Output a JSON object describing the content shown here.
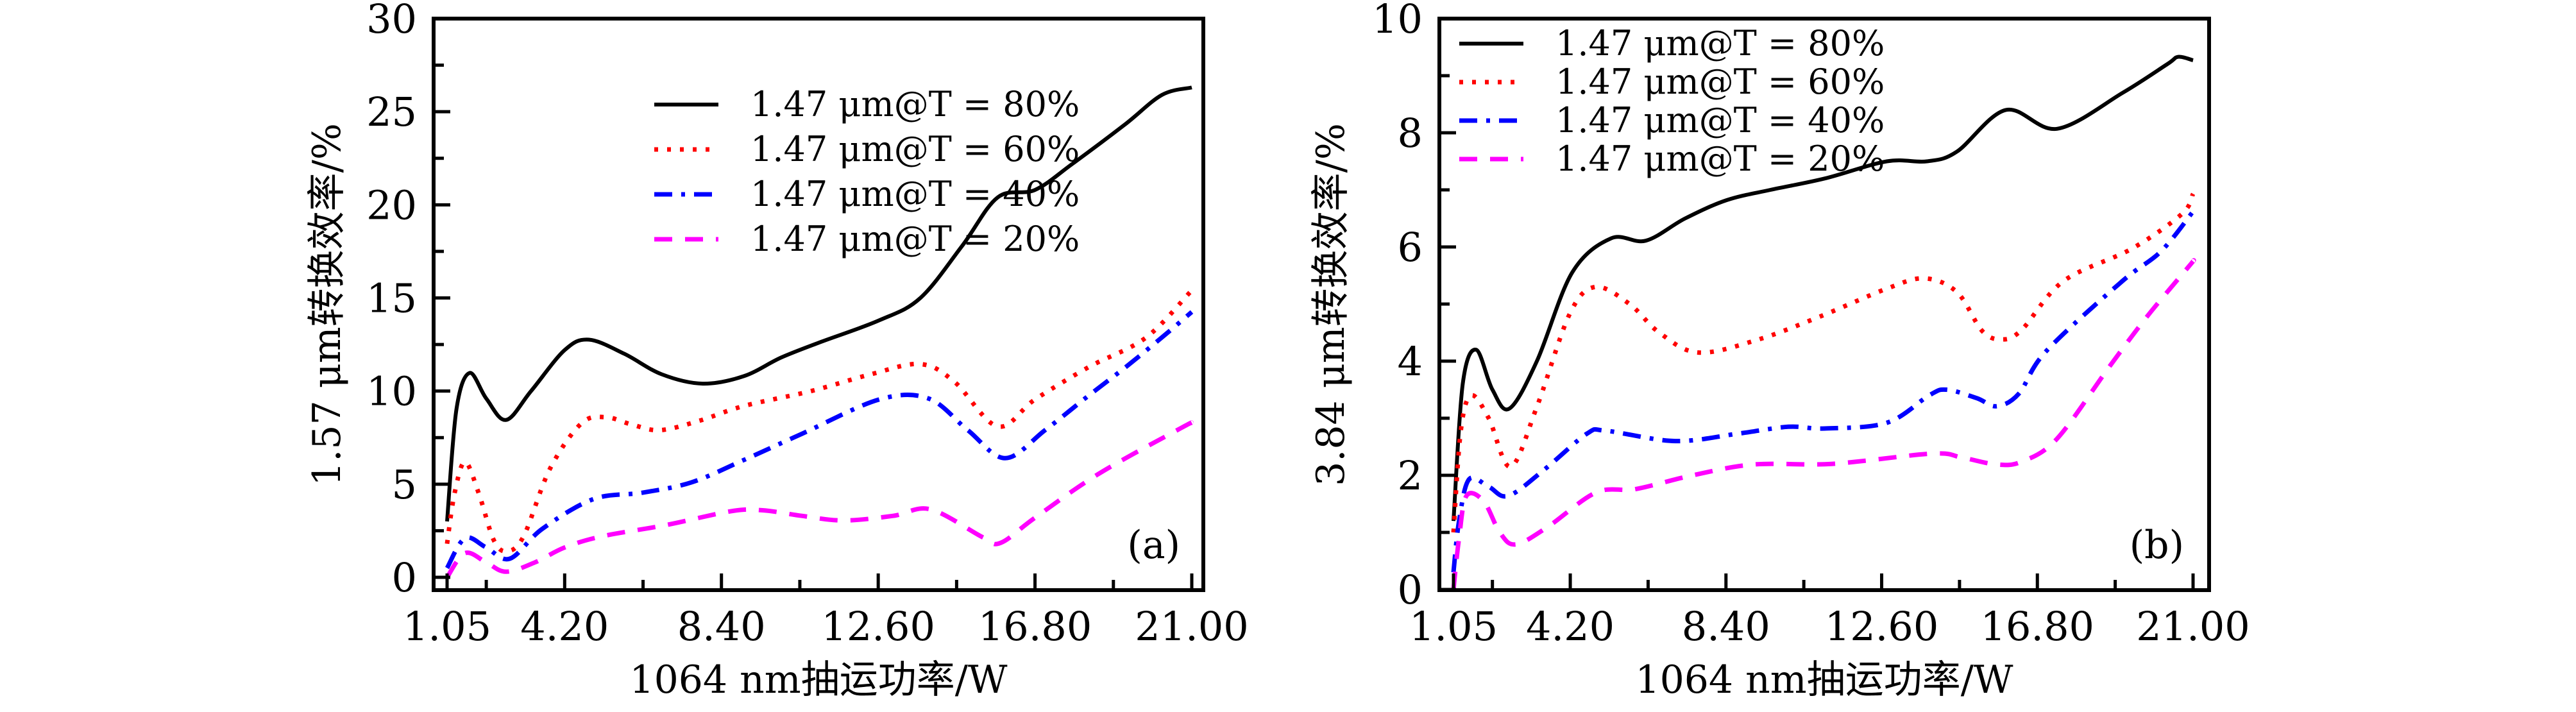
{
  "chart_data": [
    {
      "type": "line",
      "panel_label": "(a)",
      "xlabel": "1064 nm抽运功率/W",
      "ylabel": "1.57 μm转换效率/%",
      "xlim": [
        1.05,
        21.0
      ],
      "ylim": [
        0,
        30
      ],
      "xticks": [
        1.05,
        4.2,
        8.4,
        12.6,
        16.8,
        21.0
      ],
      "xtick_labels": [
        "1.05",
        "4.20",
        "8.40",
        "12.60",
        "16.80",
        "21.00"
      ],
      "xminor_ticks": [
        2.1,
        6.3,
        10.5,
        14.7,
        18.9
      ],
      "yticks": [
        0,
        5,
        10,
        15,
        20,
        25,
        30
      ],
      "ytick_labels": [
        "0",
        "5",
        "10",
        "15",
        "20",
        "25",
        "30"
      ],
      "yminor_ticks": [
        2.5,
        7.5,
        12.5,
        17.5,
        22.5,
        27.5
      ],
      "grid": false,
      "legend_position": "top-center",
      "series": [
        {
          "name": "1.47 μm@T = 80%",
          "color": "#000000",
          "style": "solid",
          "x": [
            1.05,
            1.3,
            1.65,
            2.1,
            2.63,
            3.3,
            4.2,
            4.85,
            5.8,
            6.8,
            7.9,
            9.0,
            10.0,
            11.08,
            12.63,
            13.73,
            14.85,
            15.8,
            16.8,
            17.8,
            19.2,
            20.2,
            21.0
          ],
          "y": [
            3.0,
            9.0,
            10.97,
            9.6,
            8.45,
            10.0,
            12.2,
            12.76,
            12.0,
            10.9,
            10.4,
            10.8,
            11.8,
            12.65,
            13.8,
            15.0,
            17.8,
            20.4,
            20.8,
            22.2,
            24.3,
            25.9,
            26.3
          ]
        },
        {
          "name": "1.47 μm@T = 60%",
          "color": "#ff0000",
          "style": "dotted",
          "x": [
            1.05,
            1.25,
            1.53,
            1.9,
            2.3,
            2.65,
            3.1,
            3.8,
            4.64,
            5.3,
            6.0,
            6.75,
            7.8,
            9.0,
            10.8,
            12.4,
            13.73,
            14.64,
            15.8,
            16.8,
            18.25,
            19.76,
            20.95
          ],
          "y": [
            1.8,
            4.5,
            6.2,
            4.5,
            2.0,
            1.4,
            2.2,
            5.8,
            8.25,
            8.6,
            8.2,
            7.9,
            8.4,
            9.2,
            10.0,
            10.9,
            11.45,
            10.5,
            8.1,
            9.55,
            11.3,
            12.85,
            15.3
          ]
        },
        {
          "name": "1.47 μm@T = 40%",
          "color": "#0000ff",
          "style": "dashdot",
          "x": [
            1.05,
            1.53,
            2.1,
            2.73,
            3.6,
            4.97,
            6.3,
            7.6,
            9.0,
            10.55,
            12.63,
            13.95,
            15.0,
            16.0,
            17.07,
            18.2,
            19.3,
            20.33,
            21.0
          ],
          "y": [
            0.5,
            2.1,
            1.6,
            1.0,
            2.6,
            4.2,
            4.55,
            5.1,
            6.3,
            7.7,
            9.55,
            9.6,
            7.9,
            6.4,
            7.9,
            9.7,
            11.4,
            13.1,
            14.25
          ]
        },
        {
          "name": "1.47 μm@T = 20%",
          "color": "#ff00ff",
          "style": "dashed",
          "x": [
            1.05,
            1.53,
            2.1,
            2.63,
            3.4,
            4.2,
            5.2,
            6.9,
            8.66,
            9.5,
            10.55,
            11.67,
            13.0,
            14.0,
            15.4,
            15.88,
            16.8,
            18.5,
            20.7,
            21.0
          ],
          "y": [
            0.0,
            1.3,
            0.8,
            0.3,
            0.8,
            1.6,
            2.2,
            2.8,
            3.55,
            3.6,
            3.3,
            3.05,
            3.3,
            3.65,
            2.15,
            1.85,
            3.2,
            5.55,
            8.0,
            8.3
          ]
        }
      ]
    },
    {
      "type": "line",
      "panel_label": "(b)",
      "xlabel": "1064 nm抽运功率/W",
      "ylabel": "3.84 μm转换效率/%",
      "xlim": [
        1.05,
        21.0
      ],
      "ylim": [
        0,
        10
      ],
      "xticks": [
        1.05,
        4.2,
        8.4,
        12.6,
        16.8,
        21.0
      ],
      "xtick_labels": [
        "1.05",
        "4.20",
        "8.40",
        "12.60",
        "16.80",
        "21.00"
      ],
      "xminor_ticks": [
        2.1,
        6.3,
        10.5,
        14.7,
        18.9
      ],
      "yticks": [
        0,
        2,
        4,
        6,
        8,
        10
      ],
      "ytick_labels": [
        "0",
        "2",
        "4",
        "6",
        "8",
        "10"
      ],
      "yminor_ticks": [
        1,
        3,
        5,
        7,
        9
      ],
      "grid": false,
      "legend_position": "top-left",
      "series": [
        {
          "name": "1.47 μm@T = 80%",
          "color": "#000000",
          "style": "solid",
          "x": [
            1.05,
            1.3,
            1.66,
            2.1,
            2.56,
            3.3,
            4.25,
            5.3,
            6.24,
            7.3,
            8.42,
            9.6,
            11.07,
            12.74,
            13.82,
            14.63,
            15.95,
            17.33,
            19.1,
            20.3,
            20.6,
            21.0
          ],
          "y": [
            1.2,
            3.6,
            4.2,
            3.5,
            3.17,
            4.0,
            5.55,
            6.15,
            6.11,
            6.5,
            6.82,
            7.0,
            7.2,
            7.5,
            7.5,
            7.67,
            8.4,
            8.07,
            8.7,
            9.2,
            9.33,
            9.27
          ]
        },
        {
          "name": "1.47 μm@T = 60%",
          "color": "#ff0000",
          "style": "dotted",
          "x": [
            1.05,
            1.25,
            1.53,
            2.0,
            2.59,
            3.3,
            4.18,
            4.87,
            5.8,
            6.6,
            7.66,
            9.28,
            10.93,
            12.74,
            13.75,
            14.63,
            15.31,
            15.84,
            16.38,
            17.5,
            19.35,
            20.7,
            21.0
          ],
          "y": [
            1.0,
            2.8,
            3.4,
            3.0,
            2.15,
            3.2,
            4.82,
            5.3,
            5.0,
            4.5,
            4.15,
            4.38,
            4.78,
            5.27,
            5.45,
            5.21,
            4.53,
            4.38,
            4.55,
            5.4,
            5.97,
            6.58,
            6.93
          ]
        },
        {
          "name": "1.47 μm@T = 40%",
          "color": "#0000ff",
          "style": "dashdot",
          "x": [
            1.05,
            1.2,
            1.47,
            2.0,
            2.53,
            3.5,
            4.65,
            5.17,
            7.03,
            8.73,
            10.08,
            11.07,
            12.74,
            13.88,
            14.35,
            15.17,
            15.7,
            16.3,
            17.03,
            19.07,
            20.13,
            21.0
          ],
          "y": [
            0.3,
            1.2,
            1.93,
            1.8,
            1.64,
            2.1,
            2.73,
            2.78,
            2.6,
            2.73,
            2.85,
            2.82,
            2.92,
            3.4,
            3.5,
            3.35,
            3.21,
            3.43,
            4.17,
            5.39,
            5.92,
            6.62
          ]
        },
        {
          "name": "1.47 μm@T = 20%",
          "color": "#ff00ff",
          "style": "dashed",
          "x": [
            1.05,
            1.2,
            1.4,
            1.86,
            2.3,
            2.73,
            3.6,
            4.9,
            5.97,
            7.5,
            9.15,
            11.25,
            13.95,
            14.77,
            15.7,
            16.38,
            17.33,
            18.75,
            19.77,
            20.9,
            21.0
          ],
          "y": [
            0.0,
            0.9,
            1.64,
            1.55,
            1.0,
            0.79,
            1.1,
            1.7,
            1.76,
            2.0,
            2.19,
            2.2,
            2.38,
            2.31,
            2.19,
            2.24,
            2.64,
            3.91,
            4.79,
            5.67,
            5.75
          ]
        }
      ]
    }
  ]
}
